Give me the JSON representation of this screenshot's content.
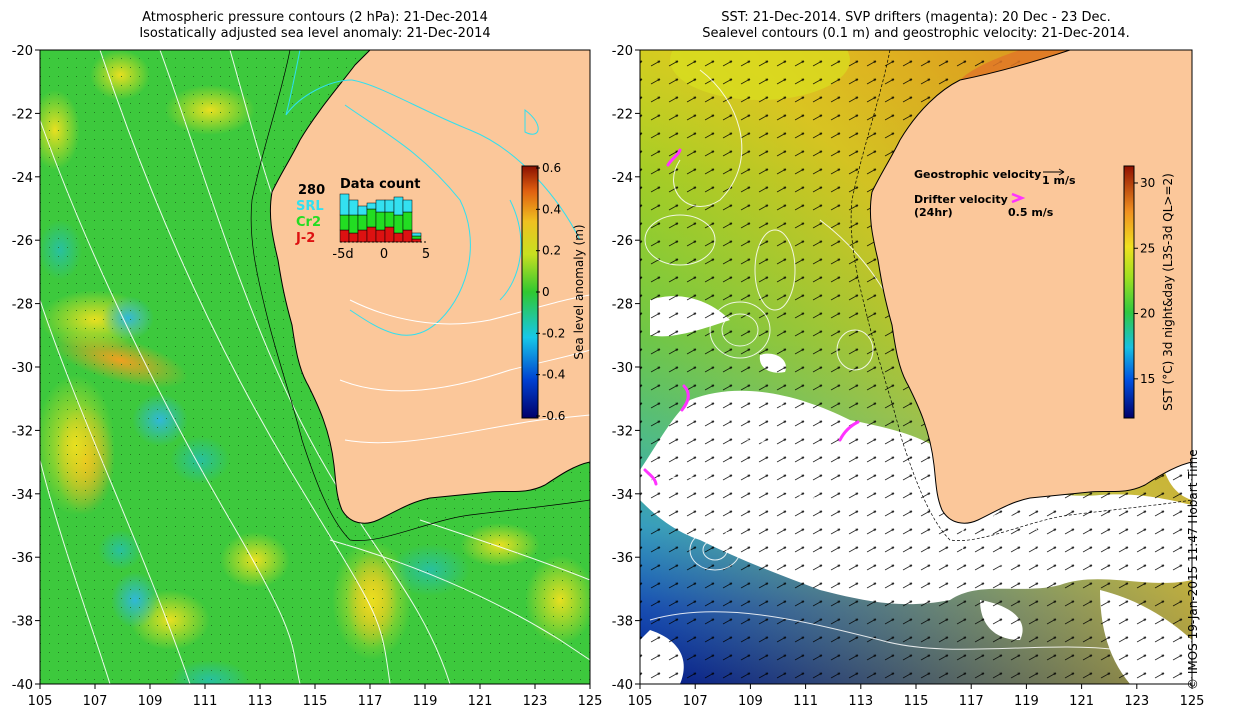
{
  "left_panel": {
    "title_line1": "Atmospheric pressure contours (2 hPa): 21-Dec-2014",
    "title_line2": "Isostatically adjusted sea level anomaly: 21-Dec-2014",
    "colorbar_label": "Sea level anomaly (m)",
    "colorbar_ticks": [
      "0.6",
      "0.4",
      "0.2",
      "0",
      "-0.2",
      "-0.4",
      "-0.6"
    ],
    "inset": {
      "title": "Data count",
      "count": "280",
      "legend": [
        {
          "label": "SRL",
          "color": "#33e0f0"
        },
        {
          "label": "Cr2",
          "color": "#22dd22"
        },
        {
          "label": "J-2",
          "color": "#dd1111"
        }
      ],
      "x_ticks": [
        "-5d",
        "0",
        "5"
      ],
      "bars": [
        {
          "J-2": 4,
          "Cr2": 5,
          "SRL": 7
        },
        {
          "J-2": 3,
          "Cr2": 6,
          "SRL": 5
        },
        {
          "J-2": 4,
          "Cr2": 5,
          "SRL": 3
        },
        {
          "J-2": 5,
          "Cr2": 6,
          "SRL": 2
        },
        {
          "J-2": 4,
          "Cr2": 6,
          "SRL": 4
        },
        {
          "J-2": 5,
          "Cr2": 5,
          "SRL": 4
        },
        {
          "J-2": 3,
          "Cr2": 6,
          "SRL": 6
        },
        {
          "J-2": 4,
          "Cr2": 6,
          "SRL": 4
        },
        {
          "J-2": 1,
          "Cr2": 1,
          "SRL": 1
        }
      ]
    }
  },
  "right_panel": {
    "title_line1": "SST: 21-Dec-2014. SVP drifters (magenta): 20 Dec - 23 Dec.",
    "title_line2": "Sealevel contours (0.1 m) and geostrophic velocity: 21-Dec-2014.",
    "colorbar_label": "SST (°C) 3d night&day (L3S-3d QL>=2)",
    "colorbar_ticks": [
      "30",
      "25",
      "20",
      "15"
    ],
    "legend_geostrophic": "Geostrophic velocity",
    "legend_geostrophic_scale": "1 m/s",
    "legend_drifter": "Drifter velocity",
    "legend_drifter_sub": "(24hr)",
    "legend_drifter_scale": "0.5 m/s"
  },
  "axes": {
    "lat_ticks": [
      "-20",
      "-22",
      "-24",
      "-26",
      "-28",
      "-30",
      "-32",
      "-34",
      "-36",
      "-38",
      "-40"
    ],
    "lon_ticks": [
      "105",
      "107",
      "109",
      "111",
      "113",
      "115",
      "117",
      "119",
      "121",
      "123",
      "125"
    ]
  },
  "footer": {
    "copyright": "© IMOS 19-Jan-2015 11:47 Hobart Time"
  },
  "colors": {
    "land": "#fbc79a",
    "ocean_green": "#3dc93d",
    "coast_line": "#000000",
    "magenta": "#ff33ff"
  }
}
